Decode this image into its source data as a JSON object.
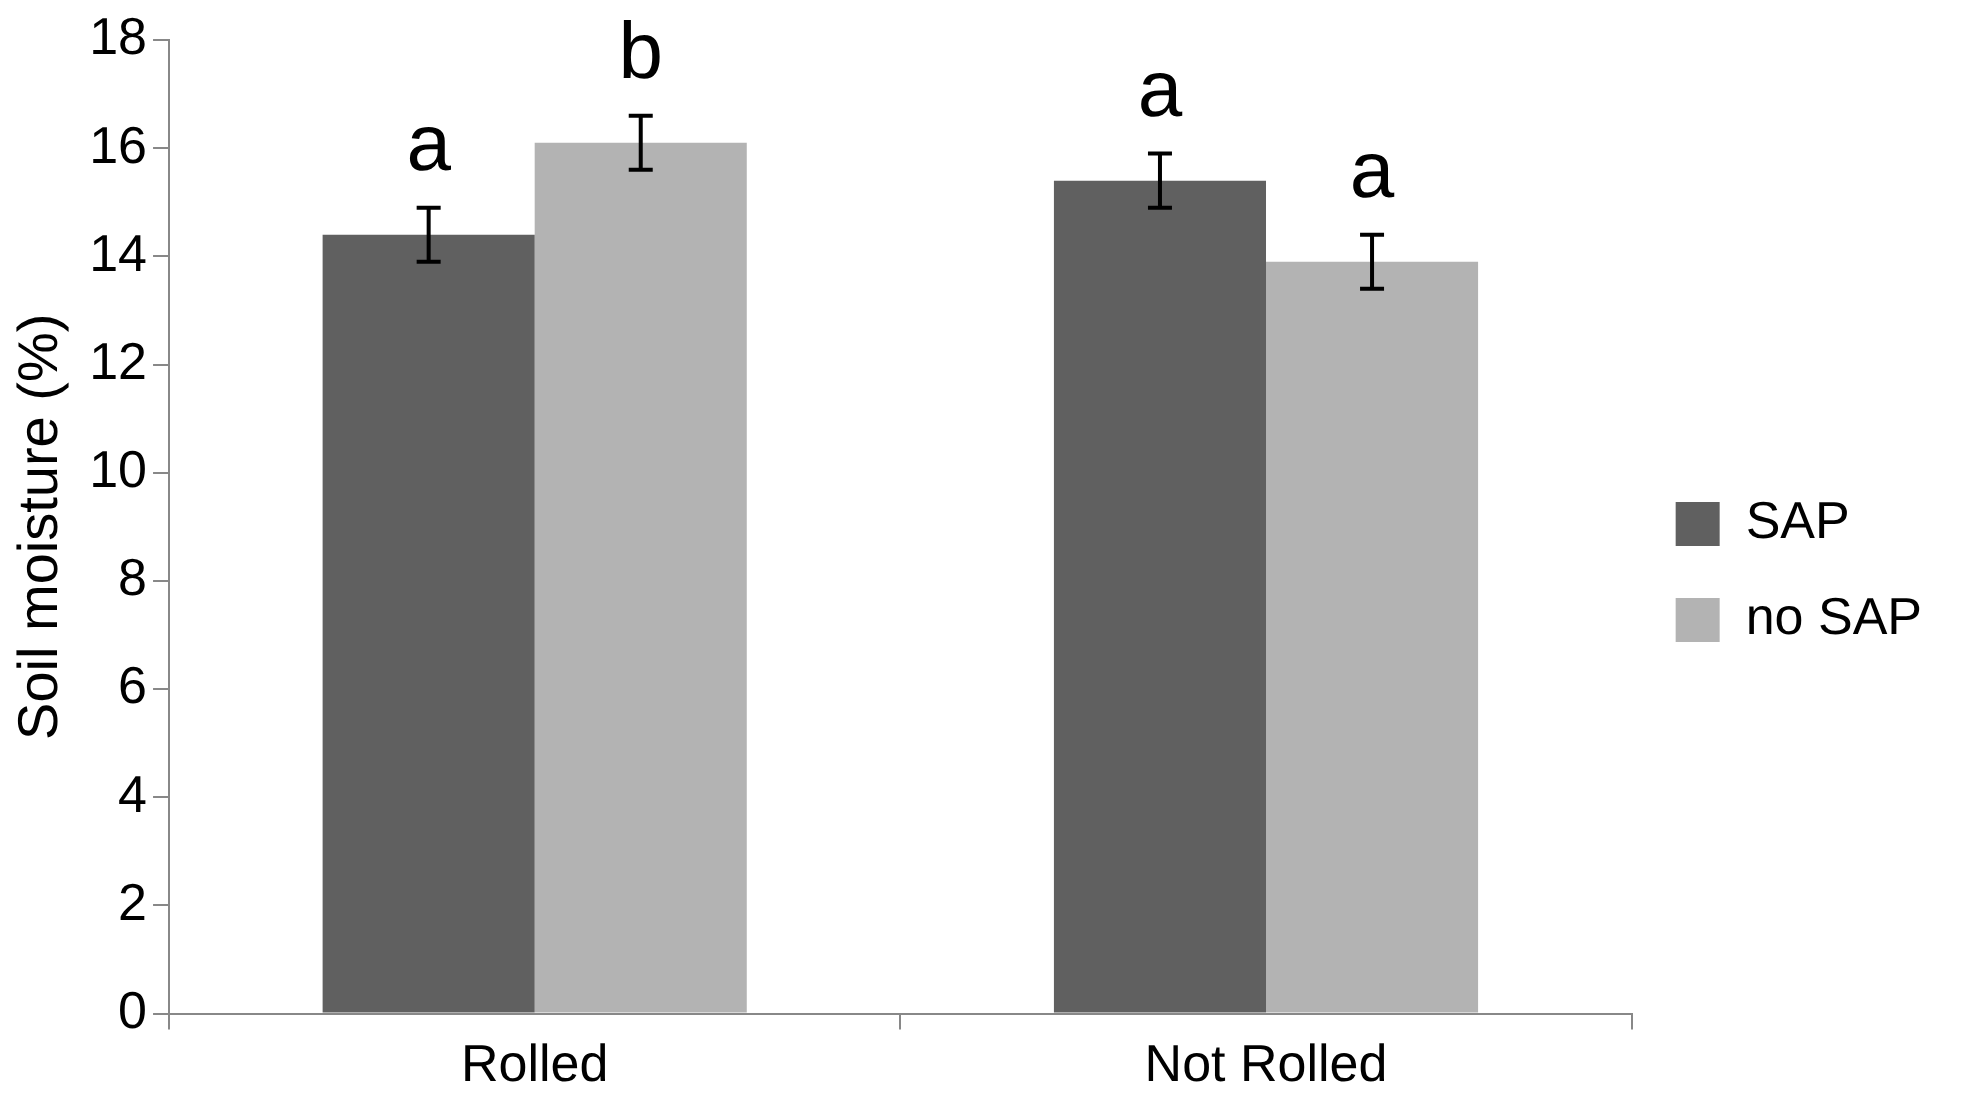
{
  "chart_data": {
    "type": "bar",
    "ylabel": "Soil moisture (%)",
    "categories": [
      "Rolled",
      "Not Rolled"
    ],
    "series": [
      {
        "name": "SAP",
        "color": "#606060",
        "values": [
          14.4,
          15.4
        ],
        "errors": [
          0.5,
          0.5
        ],
        "value_labels": [
          "a",
          "a"
        ]
      },
      {
        "name": "no SAP",
        "color": "#b3b3b3",
        "values": [
          16.1,
          13.9
        ],
        "errors": [
          0.5,
          0.5
        ],
        "value_labels": [
          "b",
          "a"
        ]
      }
    ],
    "ylim": [
      0,
      18
    ],
    "yticks": [
      0,
      2,
      4,
      6,
      8,
      10,
      12,
      14,
      16,
      18
    ],
    "grid": false,
    "legend": "right"
  }
}
